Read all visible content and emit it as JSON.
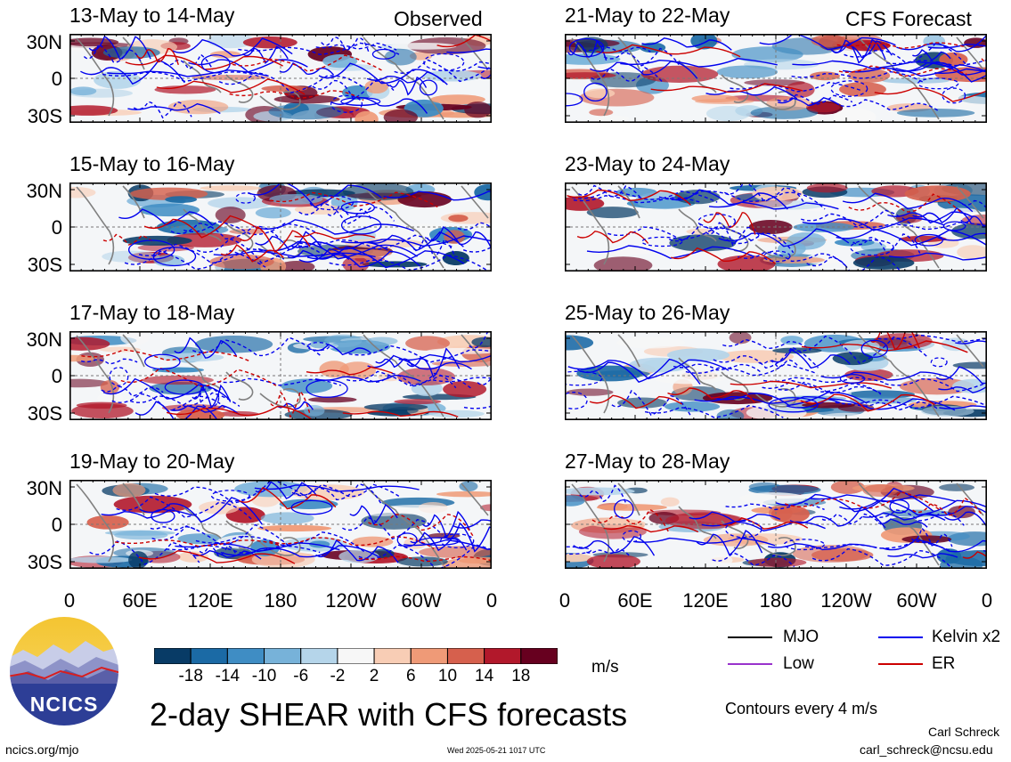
{
  "headers": {
    "left": "Observed",
    "right": "CFS Forecast"
  },
  "panels": [
    {
      "title": "13-May to 14-May",
      "column": "left"
    },
    {
      "title": "21-May to 22-May",
      "column": "right"
    },
    {
      "title": "15-May to 16-May",
      "column": "left"
    },
    {
      "title": "23-May to 24-May",
      "column": "right"
    },
    {
      "title": "17-May to 18-May",
      "column": "left"
    },
    {
      "title": "25-May to 26-May",
      "column": "right"
    },
    {
      "title": "19-May to 20-May",
      "column": "left"
    },
    {
      "title": "27-May to 28-May",
      "column": "right"
    }
  ],
  "lat_labels": [
    "30N",
    "0",
    "30S"
  ],
  "lon_labels": [
    "0",
    "60E",
    "120E",
    "180",
    "120W",
    "60W",
    "0"
  ],
  "colorbar": {
    "labels": [
      "-18",
      "-14",
      "-10",
      "-6",
      "-2",
      "2",
      "6",
      "10",
      "14",
      "18"
    ],
    "colors": [
      "#083b66",
      "#1b6aa5",
      "#3f8dc4",
      "#77b2d9",
      "#b5d5ea",
      "#f7f7f7",
      "#f8cdb5",
      "#ef9a77",
      "#d6604d",
      "#b2182b",
      "#67001f"
    ],
    "units": "m/s"
  },
  "legend": {
    "items": [
      {
        "label": "MJO",
        "color": "#000000"
      },
      {
        "label": "Kelvin x2",
        "color": "#0000ee"
      },
      {
        "label": "Low",
        "color": "#9933cc"
      },
      {
        "label": "ER",
        "color": "#cc0000"
      }
    ],
    "contours_note": "Contours every 4 m/s"
  },
  "main_title": "2-day SHEAR with CFS forecasts",
  "logo_text": "NCICS",
  "footer": {
    "url": "ncics.org/mjo",
    "timestamp": "Wed 2025-05-21 1017 UTC",
    "author": "Carl Schreck",
    "email": "carl_schreck@ncsu.edu"
  }
}
